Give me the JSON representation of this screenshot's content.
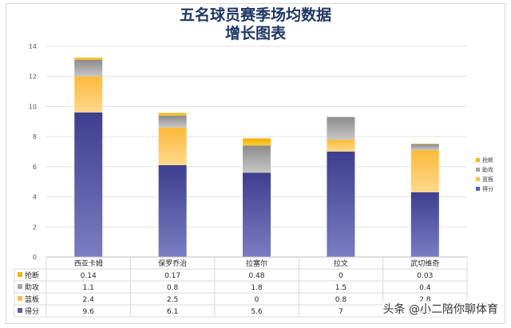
{
  "chart_data": {
    "type": "bar",
    "stacked": true,
    "title_lines": [
      "五名球员赛季场均数据",
      "增长图表"
    ],
    "categories": [
      "西亚卡姆",
      "保罗乔治",
      "拉塞尔",
      "拉文",
      "武切维奇"
    ],
    "series": [
      {
        "name": "得分",
        "values": [
          "9.6",
          "6.1",
          "5.6",
          "7",
          "4.3"
        ],
        "color": "#5a5da6"
      },
      {
        "name": "篮板",
        "values": [
          "2.4",
          "2.5",
          "0",
          "0.8",
          "2.8"
        ],
        "color": "#fdbe4f"
      },
      {
        "name": "助攻",
        "values": [
          "1.1",
          "0.8",
          "1.8",
          "1.5",
          "0.4"
        ],
        "color": "#a6a6a6"
      },
      {
        "name": "抢断",
        "values": [
          "0.14",
          "0.17",
          "0.48",
          "0",
          "0.03"
        ],
        "color": "#f5b800"
      }
    ],
    "ylim": [
      0,
      14
    ],
    "yticks": [
      "0",
      "2",
      "4",
      "6",
      "8",
      "10",
      "12",
      "14"
    ],
    "grid": true,
    "legend_position": "right",
    "data_table": true
  },
  "watermark": "头条 @小二陪你聊体育"
}
